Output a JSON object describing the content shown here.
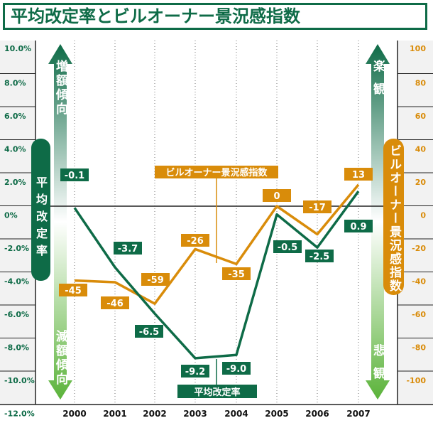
{
  "title": "平均改定率とビルオーナー景況感指数",
  "chart_data": {
    "type": "line",
    "title": "平均改定率とビルオーナー景況感指数",
    "categories": [
      "2000",
      "2001",
      "2002",
      "2003",
      "2004",
      "2005",
      "2006",
      "2007"
    ],
    "left_axis": {
      "ticks": [
        "10.0%",
        "8.0%",
        "6.0%",
        "4.0%",
        "2.0%",
        "0%",
        "-2.0%",
        "-4.0%",
        "-6.0%",
        "-8.0%",
        "-10.0%",
        "-12.0%"
      ],
      "ylim": [
        -12,
        10
      ],
      "label": "平均改定率",
      "up_label": "増額傾向",
      "down_label": "減額傾向"
    },
    "right_axis": {
      "ticks": [
        "100",
        "80",
        "60",
        "40",
        "20",
        "0",
        "-20",
        "-40",
        "-60",
        "-80",
        "-100"
      ],
      "ylim": [
        -120,
        100
      ],
      "label": "ビルオーナー景況感指数",
      "up_label": "楽観",
      "down_label": "悲観"
    },
    "series": [
      {
        "name": "平均改定率",
        "axis": "left",
        "color": "#0e6b47",
        "values": [
          -0.1,
          -3.7,
          -6.5,
          -9.2,
          -9.0,
          -0.5,
          -2.5,
          0.9
        ],
        "labels": [
          "-0.1",
          "-3.7",
          "-6.5",
          "-9.2",
          "-9.0",
          "-0.5",
          "-2.5",
          "0.9"
        ]
      },
      {
        "name": "ビルオーナー景況感指数",
        "axis": "right",
        "color": "#d98c0a",
        "values": [
          -45,
          -46,
          -59,
          -26,
          -35,
          0,
          -17,
          13
        ],
        "labels": [
          "-45",
          "-46",
          "-59",
          "-26",
          "-35",
          "0",
          "-17",
          "13"
        ]
      }
    ],
    "grid": true
  }
}
